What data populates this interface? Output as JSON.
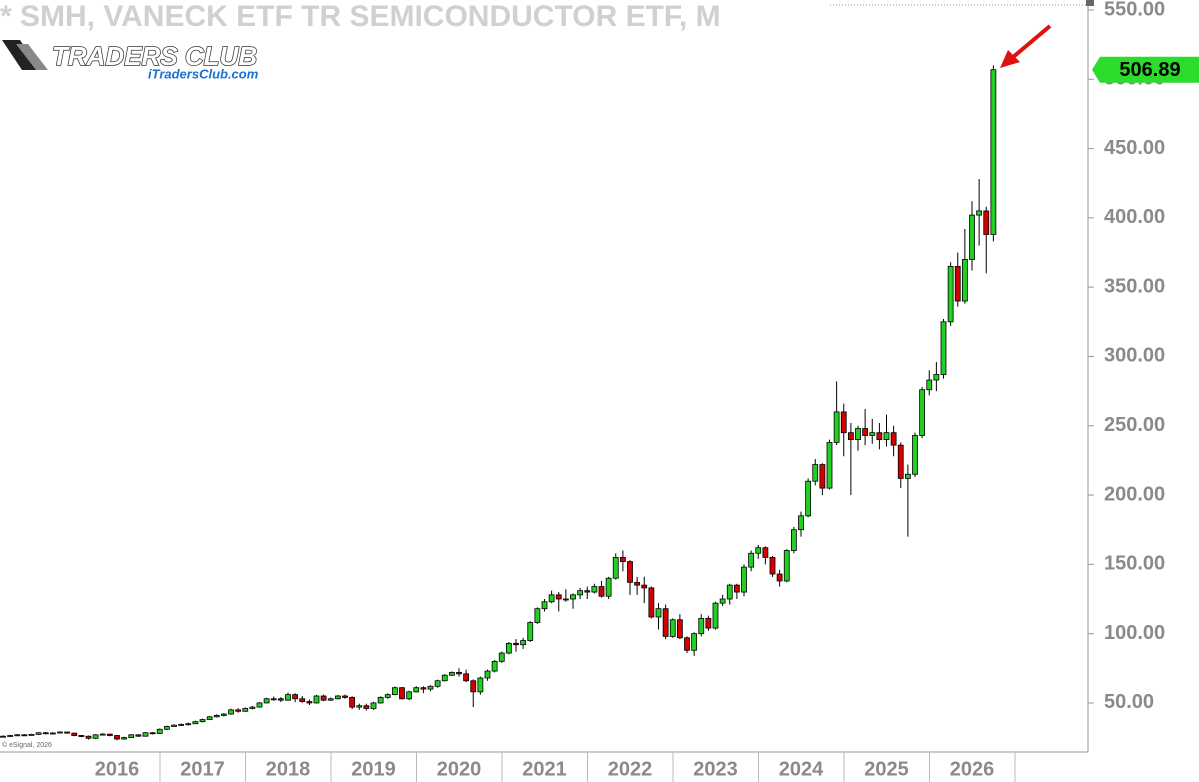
{
  "chart_data": {
    "type": "candlestick",
    "title": "* SMH, VANECK ETF TR SEMICONDUCTOR ETF, M",
    "brand": "TRADERS CLUB",
    "site": "iTradersClub.com",
    "footer": "© eSignal, 2026",
    "categories": [
      null,
      null,
      null,
      null,
      null,
      null,
      null,
      null,
      null,
      null,
      null,
      null,
      null,
      null,
      null,
      null,
      "2016",
      null,
      null,
      null,
      null,
      null,
      null,
      null,
      null,
      null,
      null,
      null,
      "2017",
      null,
      null,
      null,
      null,
      null,
      null,
      null,
      null,
      null,
      null,
      null,
      "2018",
      null,
      null,
      null,
      null,
      null,
      null,
      null,
      null,
      null,
      null,
      null,
      "2019",
      null,
      null,
      null,
      null,
      null,
      null,
      null,
      null,
      null,
      null,
      null,
      "2020",
      null,
      null,
      null,
      null,
      null,
      null,
      null,
      null,
      null,
      null,
      null,
      "2021",
      null,
      null,
      null,
      null,
      null,
      null,
      null,
      null,
      null,
      null,
      null,
      "2022",
      null,
      null,
      null,
      null,
      null,
      null,
      null,
      null,
      null,
      null,
      null,
      "2023",
      null,
      null,
      null,
      null,
      null,
      null,
      null,
      null,
      null,
      null,
      null,
      "2024",
      null,
      null,
      null,
      null,
      null,
      null,
      null,
      null,
      null,
      null,
      null,
      "2025",
      null,
      null,
      null,
      null,
      null,
      null,
      null,
      null,
      null,
      null,
      null,
      "2026",
      null,
      null,
      null
    ],
    "open": [
      25.5,
      26,
      26.5,
      27,
      26.8,
      27.3,
      28.5,
      27.8,
      28.3,
      29,
      28.2,
      26.5,
      26,
      24.5,
      27,
      27.5,
      26.5,
      24,
      25,
      27,
      26,
      28.5,
      28,
      31,
      33,
      34,
      34.5,
      35,
      36.5,
      38,
      40,
      41,
      42,
      45,
      44,
      46,
      47,
      50,
      53,
      53,
      52,
      56,
      53,
      51,
      50,
      55,
      52,
      53,
      55,
      54,
      47,
      48,
      46,
      50,
      54,
      56,
      61,
      53,
      58,
      61,
      60,
      62,
      66,
      70,
      72,
      71,
      66,
      58,
      68,
      73,
      80,
      86,
      93,
      92,
      95,
      108,
      118,
      123,
      128,
      125,
      125,
      128,
      131,
      130,
      134,
      127,
      140,
      155,
      152,
      137,
      135,
      133,
      112,
      118,
      98,
      110,
      97,
      88,
      100,
      111,
      104,
      122,
      125,
      135,
      130,
      148,
      158,
      162,
      155,
      143,
      138,
      160,
      175,
      185,
      210,
      222,
      205,
      238,
      260,
      245,
      240,
      248,
      243,
      245,
      240,
      245,
      236,
      212,
      215,
      243,
      276,
      283,
      287,
      325,
      365,
      340,
      370,
      402,
      405,
      388
    ],
    "high": [
      26.6,
      27,
      27.6,
      27.5,
      27.8,
      29,
      29.1,
      28.9,
      29.6,
      29.4,
      28.6,
      26.9,
      26.5,
      27.5,
      28.2,
      27.9,
      26.8,
      25.6,
      27.5,
      27.4,
      29,
      29,
      31.6,
      33.6,
      34.6,
      35.2,
      35.8,
      37.2,
      38.7,
      40.6,
      41.8,
      42.7,
      45.9,
      46.2,
      46.8,
      47.9,
      50.6,
      53.8,
      54.6,
      54.2,
      57.5,
      57,
      55,
      52.5,
      55.8,
      56,
      54,
      55.8,
      56,
      54.8,
      49.5,
      49.5,
      50.8,
      54.8,
      57,
      61.8,
      61.5,
      58.8,
      62,
      62,
      62.8,
      66.8,
      70.8,
      72.8,
      75,
      74,
      67,
      69,
      74,
      81,
      87,
      94,
      96,
      97,
      109,
      119,
      125,
      131,
      130,
      132,
      129,
      133,
      134,
      136,
      138,
      141,
      158,
      160,
      153,
      141,
      141,
      134,
      122,
      121,
      111,
      114,
      98,
      101,
      114,
      113,
      123,
      128,
      136,
      136,
      150,
      160,
      164,
      163,
      156,
      146,
      161,
      177,
      188,
      212,
      226,
      223,
      240,
      282,
      266,
      252,
      250,
      262,
      255,
      252,
      258,
      250,
      238,
      222,
      245,
      278,
      290,
      296,
      327,
      368,
      375,
      392,
      412,
      428,
      408,
      510
    ],
    "low": [
      25.2,
      25.6,
      26.2,
      26.2,
      26.5,
      27,
      27.2,
      27.4,
      28,
      27.9,
      26,
      25.2,
      23.5,
      24,
      26.8,
      25.9,
      23,
      23.4,
      24.7,
      25.5,
      25.7,
      27.3,
      27.6,
      30.5,
      32.6,
      33.4,
      33.7,
      34.8,
      36,
      37.6,
      39.5,
      40.3,
      41.5,
      43,
      43.6,
      45.4,
      46.6,
      49.6,
      51.5,
      50.6,
      51.5,
      50.5,
      50.2,
      48.5,
      49.5,
      51.2,
      51.5,
      52.5,
      53,
      45.5,
      45,
      44.5,
      45,
      49.5,
      53,
      55.5,
      52.5,
      52,
      57.5,
      57,
      58.5,
      61,
      65.5,
      69.5,
      69,
      65,
      47,
      56,
      66,
      72,
      79,
      85,
      87,
      89,
      94,
      107,
      116,
      122,
      116,
      123,
      118,
      125,
      125,
      129,
      126,
      125,
      139,
      145,
      128,
      128,
      122,
      111,
      103,
      96,
      97,
      96,
      86,
      84,
      98,
      102,
      103,
      120,
      121,
      125,
      127,
      145,
      154,
      150,
      141,
      134,
      137,
      158,
      170,
      184,
      207,
      200,
      204,
      236,
      228,
      200,
      232,
      236,
      237,
      233,
      235,
      228,
      205,
      170,
      213,
      241,
      272,
      275,
      284,
      322,
      336,
      338,
      362,
      380,
      360,
      383
    ],
    "close": [
      26,
      26.5,
      27,
      26.8,
      27.3,
      28.5,
      27.8,
      28.3,
      29,
      28.2,
      26.5,
      26,
      24.5,
      27,
      27.5,
      26.5,
      24,
      25,
      27,
      26,
      28.5,
      28,
      31,
      33,
      34,
      34.5,
      35,
      36.5,
      38,
      40,
      41,
      42,
      45,
      44,
      46,
      47,
      50,
      53,
      53,
      52,
      56,
      53,
      51,
      50,
      55,
      52,
      53,
      55,
      54,
      47,
      48,
      46,
      50,
      54,
      56,
      61,
      53,
      58,
      61,
      60,
      62,
      66,
      70,
      72,
      71,
      66,
      58,
      68,
      73,
      80,
      86,
      93,
      92,
      95,
      108,
      118,
      123,
      128,
      125,
      125,
      128,
      131,
      130,
      134,
      127,
      140,
      155,
      152,
      137,
      135,
      133,
      112,
      118,
      98,
      110,
      97,
      88,
      100,
      111,
      104,
      122,
      125,
      135,
      130,
      148,
      158,
      162,
      155,
      143,
      138,
      160,
      175,
      185,
      210,
      222,
      205,
      238,
      260,
      245,
      240,
      248,
      243,
      245,
      240,
      245,
      236,
      212,
      215,
      243,
      276,
      283,
      287,
      325,
      365,
      340,
      370,
      402,
      405,
      388,
      506.89
    ],
    "up_color": "#22d022",
    "down_color": "#d40000",
    "last_color": "#2bdc2b",
    "ylim": [
      14.6,
      557.2
    ],
    "yticks": [
      {
        "value": 50,
        "label": "50.00"
      },
      {
        "value": 100,
        "label": "100.00"
      },
      {
        "value": 150,
        "label": "150.00"
      },
      {
        "value": 200,
        "label": "200.00"
      },
      {
        "value": 250,
        "label": "250.00"
      },
      {
        "value": 300,
        "label": "300.00"
      },
      {
        "value": 350,
        "label": "350.00"
      },
      {
        "value": 400,
        "label": "400.00"
      },
      {
        "value": 450,
        "label": "450.00"
      },
      {
        "value": 500,
        "label": "500.00"
      },
      {
        "value": 550,
        "label": "550.00"
      }
    ]
  }
}
